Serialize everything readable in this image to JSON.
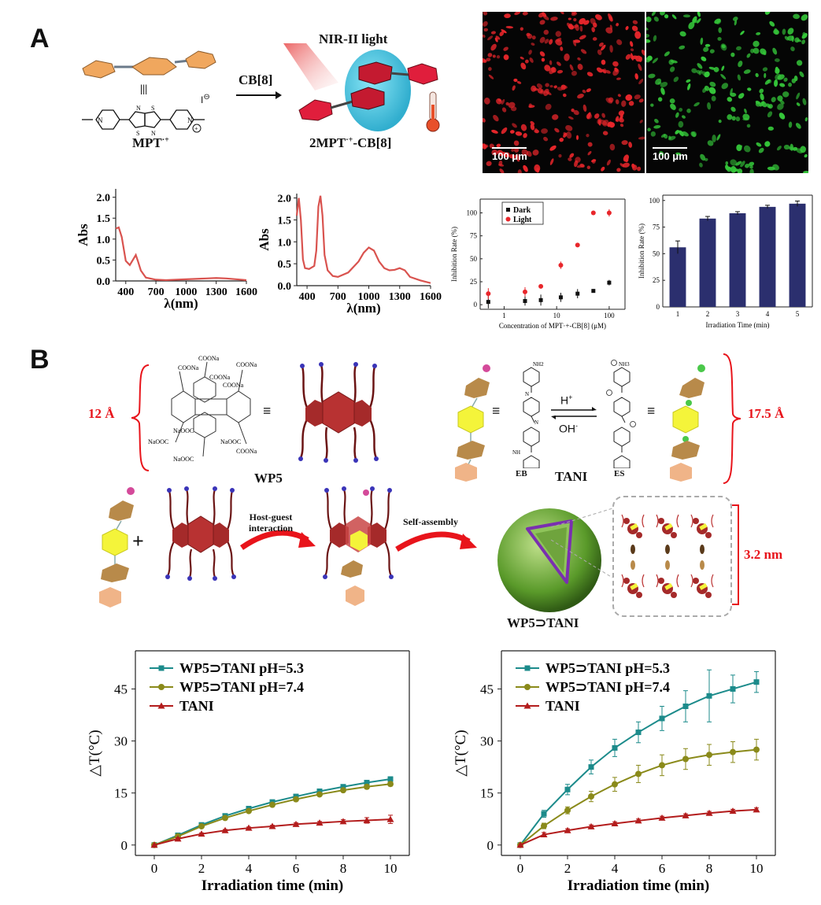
{
  "panel_a": {
    "letter": "A",
    "reagent": "CB[8]",
    "light": "NIR-II light",
    "guest_label": "MPT",
    "guest_sup": "·+",
    "complex_label_pre": "2MPT",
    "complex_label_sup": "·+",
    "complex_label_post": "-CB[8]",
    "counter_ion": "I",
    "micro_left_scale": "100 μm",
    "micro_right_scale": "100 μm",
    "colors": {
      "red_cells": "#e8262b",
      "green_cells": "#35c83a"
    }
  },
  "panel_b": {
    "letter": "B",
    "wp5_label": "WP5",
    "tani_label": "TANI",
    "eb_label": "EB",
    "es_label": "ES",
    "acid": "H",
    "acid_sup": "+",
    "base": "OH",
    "base_sup": "-",
    "equiv": "≡",
    "width_left": "12 Å",
    "width_right": "17.5 Å",
    "width_assembly": "3.2 nm",
    "step1_line1": "Host-guest",
    "step1_line2": "interaction",
    "step2": "Self-assembly",
    "complex_label": "WP5⊃TANI",
    "plus": "+",
    "wp5_groups": [
      "COONa",
      "COONa",
      "COONa",
      "COONa",
      "COONa",
      "NaOOC",
      "NaOOC",
      "NaOOC",
      "NaOOC",
      "COONa"
    ],
    "tani_groups": [
      "NH2",
      "NH",
      "N",
      "N",
      "NH3"
    ]
  },
  "chart_data": [
    {
      "type": "line",
      "xlabel": "λ(nm)",
      "ylabel": "Abs",
      "xticks": [
        400,
        700,
        1000,
        1300,
        1600
      ],
      "xticklabels": [
        "400",
        "700",
        "1000",
        "1300",
        "1600"
      ],
      "yticks": [
        0.0,
        0.5,
        1.0,
        1.5,
        2.0
      ],
      "xlim": [
        300,
        1600
      ],
      "ylim": [
        0,
        2.2
      ],
      "series": [
        {
          "x": [
            300,
            330,
            360,
            400,
            440,
            470,
            500,
            520,
            550,
            600,
            700,
            800,
            1000,
            1200,
            1300,
            1400,
            1600
          ],
          "y": [
            1.25,
            1.28,
            1.05,
            0.48,
            0.38,
            0.5,
            0.62,
            0.48,
            0.25,
            0.08,
            0.03,
            0.02,
            0.04,
            0.06,
            0.07,
            0.06,
            0.02
          ]
        }
      ]
    },
    {
      "type": "line",
      "xlabel": "λ(nm)",
      "ylabel": "Abs",
      "xticks": [
        400,
        700,
        1000,
        1300,
        1600
      ],
      "xticklabels": [
        "400",
        "700",
        "1000",
        "1300",
        "1600"
      ],
      "yticks": [
        0.0,
        0.5,
        1.0,
        1.5,
        2.0
      ],
      "xlim": [
        300,
        1600
      ],
      "ylim": [
        0,
        2.1
      ],
      "series": [
        {
          "x": [
            300,
            320,
            340,
            360,
            380,
            420,
            470,
            490,
            510,
            530,
            550,
            570,
            600,
            650,
            700,
            800,
            900,
            950,
            1000,
            1050,
            1100,
            1150,
            1200,
            1250,
            1300,
            1350,
            1400,
            1500,
            1600
          ],
          "y": [
            1.6,
            2.0,
            1.5,
            0.6,
            0.4,
            0.38,
            0.45,
            0.8,
            1.8,
            2.05,
            1.6,
            0.7,
            0.35,
            0.22,
            0.2,
            0.3,
            0.55,
            0.75,
            0.87,
            0.8,
            0.55,
            0.4,
            0.35,
            0.36,
            0.4,
            0.35,
            0.2,
            0.12,
            0.06
          ]
        }
      ]
    },
    {
      "type": "scatter",
      "xlabel": "Concentration of MPT·+-CB[8] (μM)",
      "ylabel": "Inhibition Rate (%)",
      "xscale": "log",
      "xticks": [
        1,
        10,
        100
      ],
      "xticklabels": [
        "1",
        "10",
        "100"
      ],
      "yticks": [
        0,
        25,
        50,
        75,
        100
      ],
      "xlim": [
        0.35,
        200
      ],
      "ylim": [
        -5,
        115
      ],
      "legend_position": "top-left",
      "series": [
        {
          "name": "Dark",
          "color": "#111111",
          "marker": "square",
          "x": [
            0.5,
            2.5,
            5,
            12,
            25,
            50,
            100
          ],
          "y": [
            3,
            4,
            5,
            8,
            12,
            15,
            24
          ],
          "err": [
            7,
            5,
            6,
            5,
            5,
            2,
            3
          ]
        },
        {
          "name": "Light",
          "color": "#e8262b",
          "marker": "circle",
          "x": [
            0.5,
            2.5,
            5,
            12,
            25,
            50,
            100
          ],
          "y": [
            12,
            14,
            20,
            43,
            65,
            100,
            100
          ],
          "err": [
            6,
            5,
            2,
            4,
            2,
            1,
            4
          ]
        }
      ]
    },
    {
      "type": "bar",
      "xlabel": "Irradiation Time (min)",
      "ylabel": "Inhibition Rate (%)",
      "categories": [
        "1",
        "2",
        "3",
        "4",
        "5"
      ],
      "values": [
        56,
        83,
        88,
        94,
        97
      ],
      "errors": [
        6,
        2,
        1.5,
        1.5,
        2.5
      ],
      "yticks": [
        0,
        25,
        50,
        75,
        100
      ],
      "ylim": [
        0,
        105
      ],
      "color": "#2b2f6e"
    },
    {
      "type": "line",
      "xlabel": "Irradiation time (min)",
      "ylabel": "△T(°C)",
      "xticks": [
        0,
        2,
        4,
        6,
        8,
        10
      ],
      "xticklabels": [
        "0",
        "2",
        "4",
        "6",
        "8",
        "10"
      ],
      "yticks": [
        0,
        15,
        30,
        45
      ],
      "xlim": [
        -0.8,
        10.8
      ],
      "ylim": [
        -3,
        56
      ],
      "legend_position": "top-left",
      "series": [
        {
          "name": "WP5⊃TANI  pH=5.3",
          "color": "#1c8b8b",
          "marker": "square",
          "x": [
            0,
            1,
            2,
            3,
            4,
            5,
            6,
            7,
            8,
            9,
            10
          ],
          "y": [
            0,
            2.8,
            5.8,
            8.4,
            10.5,
            12.4,
            14,
            15.5,
            16.8,
            18,
            19
          ],
          "err": [
            0,
            0.3,
            0.4,
            0.4,
            0.4,
            0.4,
            0.5,
            0.5,
            0.6,
            0.6,
            0.7
          ]
        },
        {
          "name": "WP5⊃TANI  pH=7.4",
          "color": "#8a8a1a",
          "marker": "circle",
          "x": [
            0,
            1,
            2,
            3,
            4,
            5,
            6,
            7,
            8,
            9,
            10
          ],
          "y": [
            0,
            2.5,
            5.4,
            7.8,
            9.8,
            11.6,
            13.2,
            14.6,
            15.8,
            16.8,
            17.6
          ],
          "err": [
            0,
            0.3,
            0.3,
            0.4,
            0.4,
            0.4,
            0.5,
            0.5,
            0.5,
            0.6,
            0.6
          ]
        },
        {
          "name": "TANI",
          "color": "#b31c1c",
          "marker": "triangle",
          "x": [
            0,
            1,
            2,
            3,
            4,
            5,
            6,
            7,
            8,
            9,
            10
          ],
          "y": [
            0,
            1.8,
            3.2,
            4.2,
            4.9,
            5.4,
            6,
            6.4,
            6.8,
            7.1,
            7.4
          ],
          "err": [
            0,
            0.3,
            0.3,
            0.3,
            0.3,
            0.3,
            0.4,
            0.4,
            0.5,
            0.8,
            1.2
          ]
        }
      ]
    },
    {
      "type": "line",
      "xlabel": "Irradiation time (min)",
      "ylabel": "△T(°C)",
      "xticks": [
        0,
        2,
        4,
        6,
        8,
        10
      ],
      "xticklabels": [
        "0",
        "2",
        "4",
        "6",
        "8",
        "10"
      ],
      "yticks": [
        0,
        15,
        30,
        45
      ],
      "xlim": [
        -0.8,
        10.8
      ],
      "ylim": [
        -3,
        56
      ],
      "legend_position": "top-left",
      "series": [
        {
          "name": "WP5⊃TANI  pH=5.3",
          "color": "#1c8b8b",
          "marker": "square",
          "x": [
            0,
            1,
            2,
            3,
            4,
            5,
            6,
            7,
            8,
            9,
            10
          ],
          "y": [
            0,
            9,
            16,
            22.5,
            28,
            32.5,
            36.5,
            40,
            43,
            45,
            47
          ],
          "err": [
            0,
            1,
            1.5,
            2,
            2.5,
            3,
            3.5,
            4.5,
            7.5,
            4,
            3
          ]
        },
        {
          "name": "WP5⊃TANI  pH=7.4",
          "color": "#8a8a1a",
          "marker": "circle",
          "x": [
            0,
            1,
            2,
            3,
            4,
            5,
            6,
            7,
            8,
            9,
            10
          ],
          "y": [
            0,
            5.5,
            10,
            14,
            17.5,
            20.5,
            23,
            24.8,
            26,
            26.8,
            27.5
          ],
          "err": [
            0,
            0.8,
            1,
            1.5,
            2,
            2.5,
            3,
            3,
            3,
            3,
            3
          ]
        },
        {
          "name": "TANI",
          "color": "#b31c1c",
          "marker": "triangle",
          "x": [
            0,
            1,
            2,
            3,
            4,
            5,
            6,
            7,
            8,
            9,
            10
          ],
          "y": [
            0,
            3,
            4.2,
            5.3,
            6.2,
            7,
            7.8,
            8.5,
            9.2,
            9.8,
            10.2
          ],
          "err": [
            0,
            0.6,
            0.5,
            0.5,
            0.5,
            0.5,
            0.5,
            0.5,
            0.5,
            0.5,
            0.5
          ]
        }
      ]
    }
  ]
}
